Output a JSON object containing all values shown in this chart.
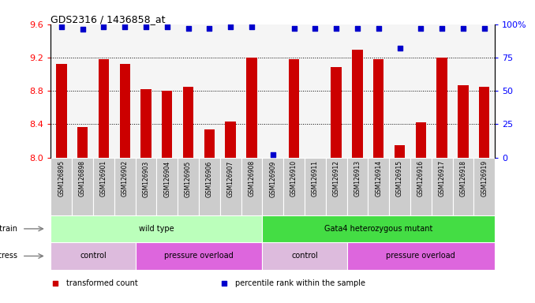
{
  "title": "GDS2316 / 1436858_at",
  "samples": [
    "GSM126895",
    "GSM126898",
    "GSM126901",
    "GSM126902",
    "GSM126903",
    "GSM126904",
    "GSM126905",
    "GSM126906",
    "GSM126907",
    "GSM126908",
    "GSM126909",
    "GSM126910",
    "GSM126911",
    "GSM126912",
    "GSM126913",
    "GSM126914",
    "GSM126915",
    "GSM126916",
    "GSM126917",
    "GSM126918",
    "GSM126919"
  ],
  "bar_values": [
    9.12,
    8.37,
    9.18,
    9.12,
    8.82,
    8.8,
    8.85,
    8.34,
    8.43,
    9.2,
    8.0,
    9.18,
    8.0,
    9.09,
    9.29,
    9.18,
    8.15,
    8.42,
    9.2,
    8.87,
    8.85
  ],
  "percentile_values": [
    98,
    96,
    98,
    98,
    98,
    98,
    97,
    97,
    98,
    98,
    2,
    97,
    97,
    97,
    97,
    97,
    82,
    97,
    97,
    97,
    97
  ],
  "bar_color": "#cc0000",
  "dot_color": "#0000cc",
  "ylim_left": [
    8.0,
    9.6
  ],
  "ylim_right": [
    0,
    100
  ],
  "yticks_left": [
    8.0,
    8.4,
    8.8,
    9.2,
    9.6
  ],
  "yticks_right": [
    0,
    25,
    50,
    75,
    100
  ],
  "grid_values": [
    8.4,
    8.8,
    9.2
  ],
  "strain_groups": [
    {
      "label": "wild type",
      "start": 0,
      "end": 10,
      "color": "#bbffbb"
    },
    {
      "label": "Gata4 heterozygous mutant",
      "start": 10,
      "end": 21,
      "color": "#44dd44"
    }
  ],
  "stress_groups": [
    {
      "label": "control",
      "start": 0,
      "end": 4,
      "color": "#ddbbdd"
    },
    {
      "label": "pressure overload",
      "start": 4,
      "end": 10,
      "color": "#dd66dd"
    },
    {
      "label": "control",
      "start": 10,
      "end": 14,
      "color": "#ddbbdd"
    },
    {
      "label": "pressure overload",
      "start": 14,
      "end": 21,
      "color": "#dd66dd"
    }
  ],
  "tick_bg_color": "#cccccc",
  "chart_bg_color": "#f5f5f5",
  "legend_items": [
    {
      "label": "transformed count",
      "color": "#cc0000"
    },
    {
      "label": "percentile rank within the sample",
      "color": "#0000cc"
    }
  ]
}
